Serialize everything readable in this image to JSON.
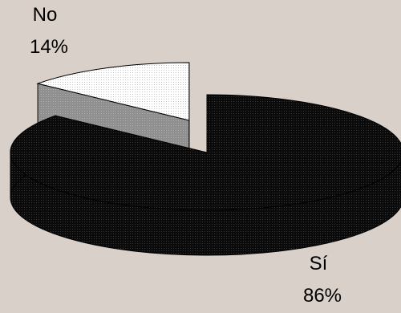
{
  "chart_data": {
    "type": "pie",
    "style": "3d-exploded",
    "title": "",
    "slices": [
      {
        "label": "Sí",
        "value": 86,
        "value_label": "86%",
        "color": "#0a0a0a"
      },
      {
        "label": "No",
        "value": 14,
        "value_label": "14%",
        "color": "#ffffff"
      }
    ],
    "legend": "none",
    "background": "#d9d0c9"
  }
}
